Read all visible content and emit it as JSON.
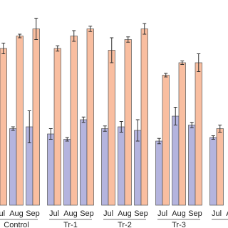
{
  "chart_data": {
    "type": "bar",
    "categories": [
      "Jul",
      "Aug",
      "Sep",
      "Jul",
      "Aug",
      "Sep",
      "Jul",
      "Aug",
      "Sep",
      "Jul",
      "Aug",
      "Sep",
      "Jul",
      "Aug"
    ],
    "groups": [
      "Control",
      "Tr-1",
      "Tr-2",
      "Tr-3",
      "T"
    ],
    "series": [
      {
        "color": "#b4b4de",
        "values": [
          null,
          43,
          44,
          40,
          37,
          48,
          43,
          44,
          42,
          36,
          50,
          45,
          38,
          null
        ],
        "errors": [
          null,
          1,
          9,
          3,
          1,
          1.5,
          1.5,
          3,
          6,
          1.5,
          5,
          1.5,
          1,
          null
        ]
      },
      {
        "color": "#f9bea0",
        "values": [
          88,
          95,
          99,
          88,
          95,
          99,
          87,
          93,
          99,
          73,
          80,
          80,
          43,
          null
        ],
        "errors": [
          3,
          1,
          6,
          1.5,
          3,
          1.5,
          7,
          1.5,
          3,
          1,
          1,
          5,
          2,
          null
        ]
      }
    ],
    "ylim": [
      0,
      100
    ]
  }
}
